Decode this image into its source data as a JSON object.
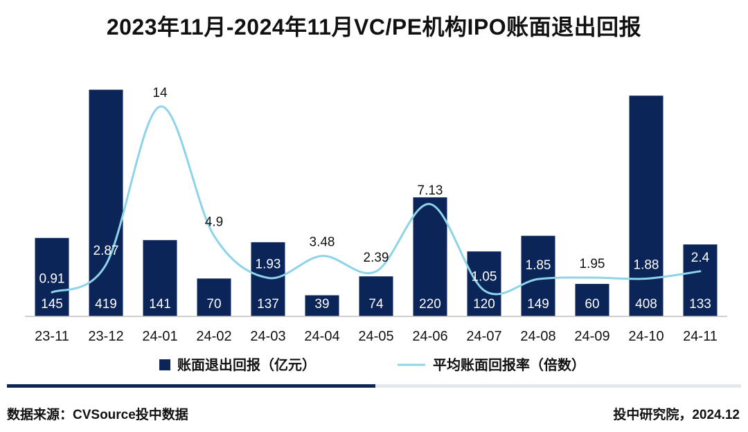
{
  "title": "2023年11月-2024年11月VC/PE机构IPO账面退出回报",
  "footer": {
    "source": "数据来源：CVSource投中数据",
    "credit": "投中研究院，2024.12"
  },
  "colors": {
    "bar": "#0B2559",
    "line": "#8DD3EA",
    "accent_dark": "#0B2559",
    "accent_light": "#E4E7EC"
  },
  "chart_data": {
    "type": "bar",
    "title": "2023年11月-2024年11月VC/PE机构IPO账面退出回报",
    "categories": [
      "23-11",
      "23-12",
      "24-01",
      "24-02",
      "24-03",
      "24-04",
      "24-05",
      "24-06",
      "24-07",
      "24-08",
      "24-09",
      "24-10",
      "24-11"
    ],
    "series": [
      {
        "name": "账面退出回报（亿元）",
        "type": "bar",
        "axis": "left",
        "values": [
          145,
          419,
          141,
          70,
          137,
          39,
          74,
          220,
          120,
          149,
          60,
          408,
          133
        ],
        "labels": [
          "145",
          "419",
          "141",
          "70",
          "137",
          "39",
          "74",
          "220",
          "120",
          "149",
          "60",
          "408",
          "133"
        ]
      },
      {
        "name": "平均账面回报率（倍数）",
        "type": "line",
        "smooth": true,
        "axis": "right",
        "values": [
          0.91,
          2.87,
          14,
          4.9,
          1.93,
          3.48,
          2.39,
          7.13,
          1.05,
          1.85,
          1.95,
          1.88,
          2.4
        ],
        "labels": [
          "0.91",
          "2.87",
          "14",
          "4.9",
          "1.93",
          "3.48",
          "2.39",
          "7.13",
          "1.05",
          "1.85",
          "1.95",
          "1.88",
          "2.4"
        ]
      }
    ],
    "ylim_left": [
      0,
      430
    ],
    "ylim_right": [
      0,
      16
    ],
    "grid": false,
    "legend_position": "bottom"
  }
}
